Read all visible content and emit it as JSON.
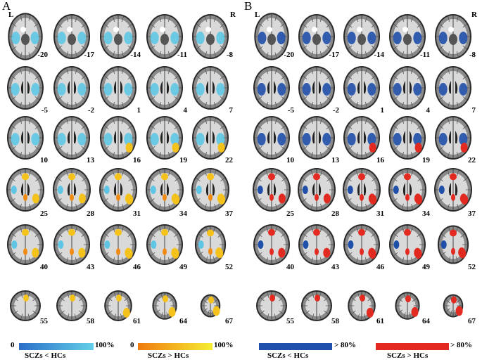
{
  "panels": [
    {
      "letter": "A",
      "left_label": "L",
      "right_label": "R",
      "colorbars": [
        {
          "min_label": "0",
          "max_label": "100%",
          "caption": "SCZs < HCs",
          "color_start": "#2a6fc9",
          "color_end": "#63cfe8"
        },
        {
          "min_label": "0",
          "max_label": "100%",
          "caption": "SCZs > HCs",
          "color_start": "#f07a0e",
          "color_end": "#f6ee33"
        }
      ]
    },
    {
      "letter": "B",
      "left_label": "L",
      "right_label": "R",
      "colorbars": [
        {
          "min_label": "",
          "max_label": "> 80%",
          "caption": "SCZs < HCs",
          "color_start": "#1f4fa8",
          "color_end": "#1f4fa8"
        },
        {
          "min_label": "",
          "max_label": "> 80%",
          "caption": "SCZs > HCs",
          "color_start": "#e32a21",
          "color_end": "#e32a21"
        }
      ]
    }
  ],
  "slice_rows": [
    [
      "-20",
      "-17",
      "-14",
      "-11",
      "-8"
    ],
    [
      "-5",
      "-2",
      "1",
      "4",
      "7"
    ],
    [
      "10",
      "13",
      "16",
      "19",
      "22"
    ],
    [
      "25",
      "28",
      "31",
      "34",
      "37"
    ],
    [
      "40",
      "43",
      "46",
      "49",
      "52"
    ],
    [
      "55",
      "58",
      "61",
      "64",
      "67"
    ]
  ],
  "colors": {
    "decrease_A": "#5ec6e4",
    "increase_A": "#f5c21b",
    "increase_A_deep": "#f08a12",
    "decrease_B": "#1f4fa8",
    "increase_B": "#e32a21",
    "brain_outer": "#2a2a2a",
    "brain_cortex": "#8a8a8a",
    "brain_white": "#d9d9d9"
  }
}
